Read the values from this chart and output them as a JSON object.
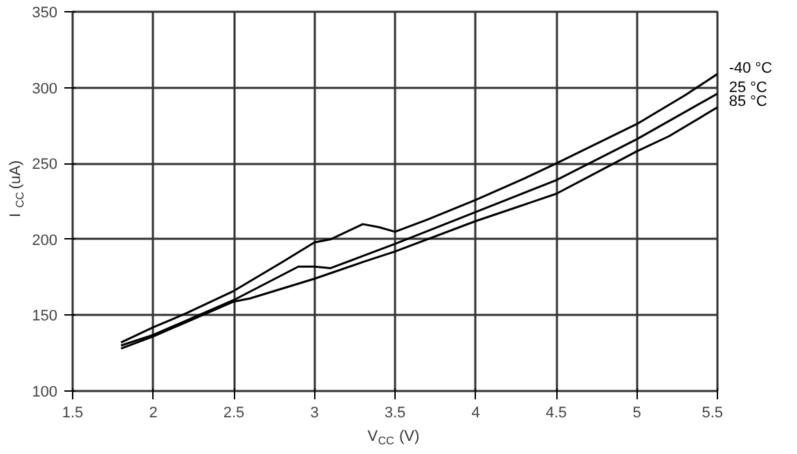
{
  "chart_data": {
    "type": "line",
    "xlabel": "V$_{CC}$ (V)",
    "ylabel": "I$_{CC}$ (uA)",
    "xlim": [
      1.5,
      5.5
    ],
    "ylim": [
      100,
      350
    ],
    "xticks": [
      1.5,
      2,
      2.5,
      3,
      3.5,
      4,
      4.5,
      5,
      5.5
    ],
    "yticks": [
      100,
      150,
      200,
      250,
      300,
      350
    ],
    "grid": true,
    "line_style": "solid",
    "marker": "none",
    "series": [
      {
        "name": "-40 °C",
        "color": "#000000",
        "x": [
          1.8,
          2,
          2.2,
          2.5,
          2.8,
          3,
          3.1,
          3.3,
          3.4,
          3.5,
          3.7,
          4,
          4.3,
          4.5,
          5,
          5.3,
          5.5
        ],
        "values": [
          132,
          142,
          151,
          166,
          185,
          198,
          200,
          210,
          208,
          205,
          213,
          226,
          240,
          250,
          276,
          295,
          309
        ]
      },
      {
        "name": "25 °C",
        "color": "#000000",
        "x": [
          1.8,
          2,
          2.5,
          2.9,
          3,
          3.1,
          3.3,
          3.5,
          4,
          4.5,
          5,
          5.5
        ],
        "values": [
          130,
          137,
          160,
          182,
          182,
          181,
          189,
          197,
          218,
          239,
          266,
          296
        ]
      },
      {
        "name": "85 °C",
        "color": "#000000",
        "x": [
          1.8,
          2,
          2.5,
          2.6,
          3,
          3.3,
          3.5,
          4,
          4.5,
          5,
          5.2,
          5.5
        ],
        "values": [
          128,
          136,
          159,
          161,
          174,
          185,
          192,
          212,
          230,
          258,
          268,
          287
        ]
      }
    ]
  }
}
